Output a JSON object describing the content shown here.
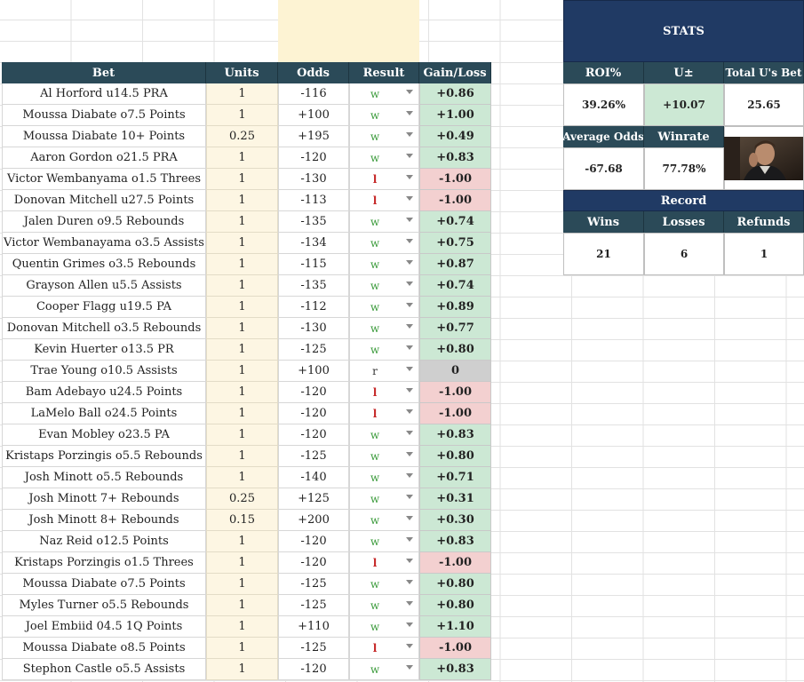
{
  "table": {
    "headers": {
      "bet": "Bet",
      "units": "Units",
      "odds": "Odds",
      "result": "Result",
      "gain": "Gain/Loss"
    },
    "rows": [
      {
        "bet": "Al Horford u14.5 PRA",
        "units": "1",
        "odds": "-116",
        "result": "w",
        "gain": "+0.86",
        "tone": "pos"
      },
      {
        "bet": "Moussa Diabate o7.5 Points",
        "units": "1",
        "odds": "+100",
        "result": "w",
        "gain": "+1.00",
        "tone": "pos"
      },
      {
        "bet": "Moussa Diabate 10+ Points",
        "units": "0.25",
        "odds": "+195",
        "result": "w",
        "gain": "+0.49",
        "tone": "pos"
      },
      {
        "bet": "Aaron Gordon o21.5 PRA",
        "units": "1",
        "odds": "-120",
        "result": "w",
        "gain": "+0.83",
        "tone": "pos"
      },
      {
        "bet": "Victor Wembanyama o1.5 Threes",
        "units": "1",
        "odds": "-130",
        "result": "l",
        "gain": "-1.00",
        "tone": "neg"
      },
      {
        "bet": "Donovan Mitchell u27.5 Points",
        "units": "1",
        "odds": "-113",
        "result": "l",
        "gain": "-1.00",
        "tone": "neg"
      },
      {
        "bet": "Jalen Duren o9.5 Rebounds",
        "units": "1",
        "odds": "-135",
        "result": "w",
        "gain": "+0.74",
        "tone": "pos"
      },
      {
        "bet": "Victor Wembanayama o3.5 Assists",
        "units": "1",
        "odds": "-134",
        "result": "w",
        "gain": "+0.75",
        "tone": "pos"
      },
      {
        "bet": "Quentin Grimes o3.5 Rebounds",
        "units": "1",
        "odds": "-115",
        "result": "w",
        "gain": "+0.87",
        "tone": "pos"
      },
      {
        "bet": "Grayson Allen u5.5 Assists",
        "units": "1",
        "odds": "-135",
        "result": "w",
        "gain": "+0.74",
        "tone": "pos"
      },
      {
        "bet": "Cooper Flagg u19.5 PA",
        "units": "1",
        "odds": "-112",
        "result": "w",
        "gain": "+0.89",
        "tone": "pos"
      },
      {
        "bet": "Donovan Mitchell o3.5 Rebounds",
        "units": "1",
        "odds": "-130",
        "result": "w",
        "gain": "+0.77",
        "tone": "pos"
      },
      {
        "bet": "Kevin Huerter o13.5 PR",
        "units": "1",
        "odds": "-125",
        "result": "w",
        "gain": "+0.80",
        "tone": "pos"
      },
      {
        "bet": "Trae Young o10.5 Assists",
        "units": "1",
        "odds": "+100",
        "result": "r",
        "gain": "0",
        "tone": "zero"
      },
      {
        "bet": "Bam Adebayo u24.5 Points",
        "units": "1",
        "odds": "-120",
        "result": "l",
        "gain": "-1.00",
        "tone": "neg"
      },
      {
        "bet": "LaMelo Ball o24.5 Points",
        "units": "1",
        "odds": "-120",
        "result": "l",
        "gain": "-1.00",
        "tone": "neg"
      },
      {
        "bet": "Evan Mobley o23.5 PA",
        "units": "1",
        "odds": "-120",
        "result": "w",
        "gain": "+0.83",
        "tone": "pos"
      },
      {
        "bet": "Kristaps Porzingis o5.5 Rebounds",
        "units": "1",
        "odds": "-125",
        "result": "w",
        "gain": "+0.80",
        "tone": "pos"
      },
      {
        "bet": "Josh Minott o5.5 Rebounds",
        "units": "1",
        "odds": "-140",
        "result": "w",
        "gain": "+0.71",
        "tone": "pos"
      },
      {
        "bet": "Josh Minott 7+ Rebounds",
        "units": "0.25",
        "odds": "+125",
        "result": "w",
        "gain": "+0.31",
        "tone": "pos"
      },
      {
        "bet": "Josh Minott 8+ Rebounds",
        "units": "0.15",
        "odds": "+200",
        "result": "w",
        "gain": "+0.30",
        "tone": "pos"
      },
      {
        "bet": "Naz Reid o12.5 Points",
        "units": "1",
        "odds": "-120",
        "result": "w",
        "gain": "+0.83",
        "tone": "pos"
      },
      {
        "bet": "Kristaps Porzingis o1.5 Threes",
        "units": "1",
        "odds": "-120",
        "result": "l",
        "gain": "-1.00",
        "tone": "neg"
      },
      {
        "bet": "Moussa Diabate o7.5 Points",
        "units": "1",
        "odds": "-125",
        "result": "w",
        "gain": "+0.80",
        "tone": "pos"
      },
      {
        "bet": "Myles Turner o5.5 Rebounds",
        "units": "1",
        "odds": "-125",
        "result": "w",
        "gain": "+0.80",
        "tone": "pos"
      },
      {
        "bet": "Joel Embiid 04.5 1Q Points",
        "units": "1",
        "odds": "+110",
        "result": "w",
        "gain": "+1.10",
        "tone": "pos"
      },
      {
        "bet": "Moussa Diabate o8.5 Points",
        "units": "1",
        "odds": "-125",
        "result": "l",
        "gain": "-1.00",
        "tone": "neg"
      },
      {
        "bet": "Stephon Castle o5.5 Assists",
        "units": "1",
        "odds": "-120",
        "result": "w",
        "gain": "+0.83",
        "tone": "pos"
      }
    ]
  },
  "stats": {
    "title": "STATS",
    "roi_label": "ROI%",
    "roi": "39.26%",
    "u_label": "U±",
    "u": "+10.07",
    "total_label": "Total U's Bet",
    "total": "25.65",
    "avg_odds_label": "Average Odds",
    "avg_odds": "-67.68",
    "winrate_label": "Winrate",
    "winrate": "77.78%",
    "record_label": "Record",
    "wins_label": "Wins",
    "wins": "21",
    "losses_label": "Losses",
    "losses": "6",
    "refunds_label": "Refunds",
    "refunds": "1"
  }
}
